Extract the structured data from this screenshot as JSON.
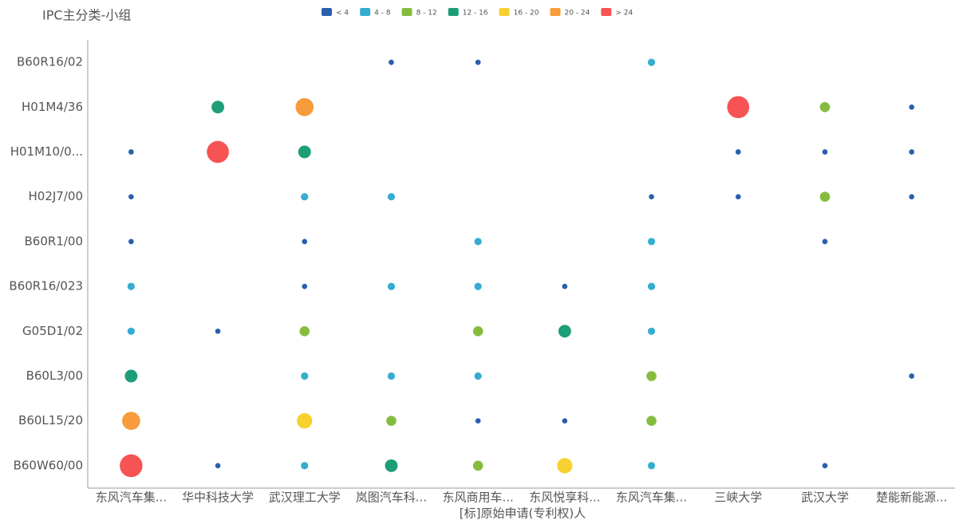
{
  "chart_data": {
    "type": "bubble-matrix",
    "title": "IPC主分类-小组",
    "x_label": "[标]原始申请(专利权)人",
    "categories": [
      "东风汽车集...",
      "华中科技大学",
      "武汉理工大学",
      "岚图汽车科...",
      "东风商用车...",
      "东风悦享科...",
      "东风汽车集...",
      "三峡大学",
      "武汉大学",
      "楚能新能源..."
    ],
    "bins": [
      4,
      8,
      12,
      16,
      20,
      24
    ],
    "legend": [
      {
        "label": "< 4",
        "color": "#2b5fad"
      },
      {
        "label": "4 - 8",
        "color": "#36acd0"
      },
      {
        "label": "8 - 12",
        "color": "#86bc3e"
      },
      {
        "label": "12 - 16",
        "color": "#1e9e78"
      },
      {
        "label": "16 - 20",
        "color": "#f7d22f"
      },
      {
        "label": "20 - 24",
        "color": "#f79c3b"
      },
      {
        "label": "> 24",
        "color": "#f65354"
      }
    ],
    "rows": [
      {
        "name": "B60R16/02",
        "values": [
          null,
          null,
          null,
          2,
          2,
          null,
          5,
          null,
          null,
          null
        ]
      },
      {
        "name": "H01M4/36",
        "values": [
          null,
          13,
          21,
          null,
          null,
          null,
          null,
          27,
          9,
          2
        ]
      },
      {
        "name": "H01M10/0...",
        "values": [
          2,
          27,
          13,
          null,
          null,
          null,
          null,
          2,
          2,
          2
        ]
      },
      {
        "name": "H02J7/00",
        "values": [
          2,
          null,
          5,
          5,
          null,
          null,
          2,
          2,
          9,
          2
        ]
      },
      {
        "name": "B60R1/00",
        "values": [
          2,
          null,
          2,
          null,
          5,
          null,
          5,
          null,
          2,
          null
        ]
      },
      {
        "name": "B60R16/023",
        "values": [
          5,
          null,
          2,
          5,
          5,
          2,
          5,
          null,
          null,
          null
        ]
      },
      {
        "name": "G05D1/02",
        "values": [
          5,
          2,
          9,
          null,
          9,
          13,
          5,
          null,
          null,
          null
        ]
      },
      {
        "name": "B60L3/00",
        "values": [
          13,
          null,
          5,
          5,
          5,
          null,
          9,
          null,
          null,
          2
        ]
      },
      {
        "name": "B60L15/20",
        "values": [
          21,
          null,
          17,
          9,
          2,
          2,
          9,
          null,
          null,
          null
        ]
      },
      {
        "name": "B60W60/00",
        "values": [
          28,
          2,
          5,
          13,
          9,
          17,
          5,
          null,
          2,
          null
        ]
      }
    ]
  }
}
